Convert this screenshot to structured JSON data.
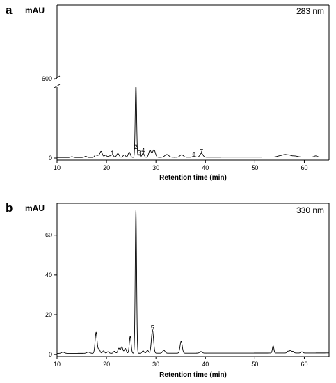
{
  "chart_data": [
    {
      "panel": "a",
      "type": "line",
      "ylabel": "mAU",
      "wavelength": "283 nm",
      "xlabel": "Retention time (min)",
      "xlim": [
        10,
        65
      ],
      "x_ticks": [
        10,
        20,
        30,
        40,
        50,
        60
      ],
      "y_ticks": [
        0,
        600
      ],
      "y_break": true,
      "baseline_low": 2,
      "baseline_high": 4,
      "peaks": [
        {
          "rt": 13.0,
          "h": 3,
          "w": 0.25
        },
        {
          "rt": 15.8,
          "h": 4,
          "w": 0.25
        },
        {
          "rt": 17.8,
          "h": 9,
          "w": 0.22
        },
        {
          "rt": 18.3,
          "h": 6,
          "w": 0.2
        },
        {
          "rt": 18.9,
          "h": 22,
          "w": 0.25
        },
        {
          "rt": 19.8,
          "h": 8,
          "w": 0.25
        },
        {
          "rt": 20.6,
          "h": 5,
          "w": 0.25
        },
        {
          "rt": 21.2,
          "h": 9,
          "w": 0.25
        },
        {
          "rt": 22.3,
          "h": 14,
          "w": 0.25
        },
        {
          "rt": 23.6,
          "h": 9,
          "w": 0.25
        },
        {
          "rt": 24.6,
          "h": 19,
          "w": 0.22
        },
        {
          "rt": 25.95,
          "h": 270,
          "w": 0.14
        },
        {
          "rt": 26.6,
          "h": 10,
          "w": 0.18
        },
        {
          "rt": 27.4,
          "h": 15,
          "w": 0.22
        },
        {
          "rt": 28.8,
          "h": 25,
          "w": 0.25
        },
        {
          "rt": 29.6,
          "h": 27,
          "w": 0.28
        },
        {
          "rt": 32.2,
          "h": 10,
          "w": 0.4
        },
        {
          "rt": 35.2,
          "h": 9,
          "w": 0.35
        },
        {
          "rt": 37.7,
          "h": 4,
          "w": 0.3
        },
        {
          "rt": 39.2,
          "h": 14,
          "w": 0.3
        },
        {
          "rt": 55.2,
          "h": 5,
          "w": 0.6
        },
        {
          "rt": 56.1,
          "h": 7,
          "w": 0.4
        },
        {
          "rt": 56.9,
          "h": 6,
          "w": 0.4
        },
        {
          "rt": 58.0,
          "h": 4,
          "w": 0.6
        },
        {
          "rt": 62.3,
          "h": 4,
          "w": 0.3
        }
      ],
      "annotations": [
        {
          "label": "1",
          "x": 21.2,
          "y": 10
        },
        {
          "label": "2",
          "x": 25.95,
          "y": 33
        },
        {
          "label": "3",
          "x": 26.6,
          "y": 12
        },
        {
          "label": "4",
          "x": 27.4,
          "y": 20
        },
        {
          "label": "6",
          "x": 37.7,
          "y": 6
        },
        {
          "label": "7",
          "x": 39.2,
          "y": 16
        }
      ]
    },
    {
      "panel": "b",
      "type": "line",
      "ylabel": "mAU",
      "wavelength": "330 nm",
      "xlabel": "Retention time (min)",
      "xlim": [
        10,
        65
      ],
      "ylim": [
        -1,
        76
      ],
      "x_ticks": [
        10,
        20,
        30,
        40,
        50,
        60
      ],
      "y_ticks": [
        0,
        20,
        40,
        60
      ],
      "baseline_low": 0.6,
      "baseline_high": 0.8,
      "peaks": [
        {
          "rt": 11.2,
          "h": 0.6,
          "w": 0.3
        },
        {
          "rt": 16.3,
          "h": 0.6,
          "w": 0.3
        },
        {
          "rt": 17.9,
          "h": 10.5,
          "w": 0.2
        },
        {
          "rt": 18.5,
          "h": 2.0,
          "w": 0.2
        },
        {
          "rt": 19.4,
          "h": 1.2,
          "w": 0.2
        },
        {
          "rt": 20.3,
          "h": 0.8,
          "w": 0.2
        },
        {
          "rt": 21.6,
          "h": 1.0,
          "w": 0.2
        },
        {
          "rt": 22.5,
          "h": 2.5,
          "w": 0.2
        },
        {
          "rt": 23.1,
          "h": 3.2,
          "w": 0.2
        },
        {
          "rt": 23.8,
          "h": 2.4,
          "w": 0.2
        },
        {
          "rt": 24.8,
          "h": 8.5,
          "w": 0.18
        },
        {
          "rt": 25.95,
          "h": 72,
          "w": 0.14
        },
        {
          "rt": 27.4,
          "h": 1.2,
          "w": 0.2
        },
        {
          "rt": 28.3,
          "h": 1.4,
          "w": 0.2
        },
        {
          "rt": 29.3,
          "h": 11.5,
          "w": 0.22
        },
        {
          "rt": 31.6,
          "h": 1.4,
          "w": 0.25
        },
        {
          "rt": 35.1,
          "h": 6.0,
          "w": 0.22
        },
        {
          "rt": 39.1,
          "h": 0.8,
          "w": 0.25
        },
        {
          "rt": 53.7,
          "h": 3.6,
          "w": 0.15
        },
        {
          "rt": 56.7,
          "h": 0.9,
          "w": 0.2
        },
        {
          "rt": 57.2,
          "h": 1.2,
          "w": 0.2
        },
        {
          "rt": 57.7,
          "h": 0.8,
          "w": 0.2
        },
        {
          "rt": 59.5,
          "h": 0.6,
          "w": 0.2
        }
      ],
      "annotations": [
        {
          "label": "5",
          "x": 29.3,
          "y": 12.5
        }
      ]
    }
  ]
}
